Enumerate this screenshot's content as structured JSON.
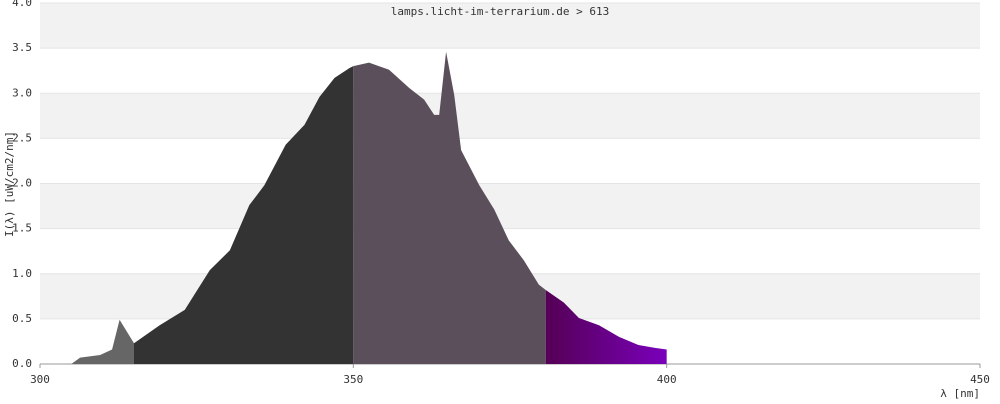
{
  "chart_data": {
    "type": "area",
    "title": "lamps.licht-im-terrarium.de > 613",
    "xlabel": "λ [nm]",
    "ylabel": "I(λ) [uW/cm2/nm]",
    "xlim": [
      300,
      450
    ],
    "xticks": [
      300,
      350,
      400,
      450
    ],
    "ylim": [
      0,
      4
    ],
    "yticks": [
      {
        "value": 0,
        "label": "0.0"
      },
      0.5,
      {
        "value": 1,
        "label": "1.0"
      },
      1.5,
      {
        "value": 2,
        "label": "2.0"
      },
      2.5,
      {
        "value": 3,
        "label": "3.0"
      },
      3.5,
      {
        "value": 4,
        "label": "4.0"
      }
    ],
    "grid": "bands",
    "series": [
      {
        "color": "#666666",
        "x": [
          305,
          306.4,
          309.6,
          311.5,
          312.7,
          315
        ],
        "values": [
          0,
          0.07,
          0.1,
          0.16,
          0.49,
          0.23
        ]
      },
      {
        "color": "#333333",
        "x": [
          315,
          319.1,
          323.1,
          327.1,
          330.3,
          333.4,
          335.8,
          339.2,
          342.2,
          344.6,
          347,
          349.4,
          350
        ],
        "values": [
          0.23,
          0.43,
          0.6,
          1.04,
          1.26,
          1.76,
          1.98,
          2.43,
          2.65,
          2.96,
          3.17,
          3.28,
          3.3
        ]
      },
      {
        "color": "#5c4f5c",
        "x": [
          350,
          352.5,
          355.7,
          358.9,
          361.3,
          362.9,
          363.7,
          364.8,
          366.1,
          367.2,
          370.1,
          372.5,
          374.8,
          377.2,
          379.6,
          380.7
        ],
        "values": [
          3.3,
          3.34,
          3.26,
          3.06,
          2.93,
          2.76,
          2.76,
          3.46,
          2.98,
          2.37,
          1.98,
          1.71,
          1.37,
          1.15,
          0.88,
          0.82
        ]
      },
      {
        "color": [
          "#550055",
          "#7a00bb"
        ],
        "x": [
          380.7,
          383.6,
          386,
          389.2,
          392.4,
          395.5,
          398,
          400
        ],
        "values": [
          0.82,
          0.68,
          0.51,
          0.43,
          0.3,
          0.21,
          0.18,
          0.16
        ]
      }
    ]
  }
}
